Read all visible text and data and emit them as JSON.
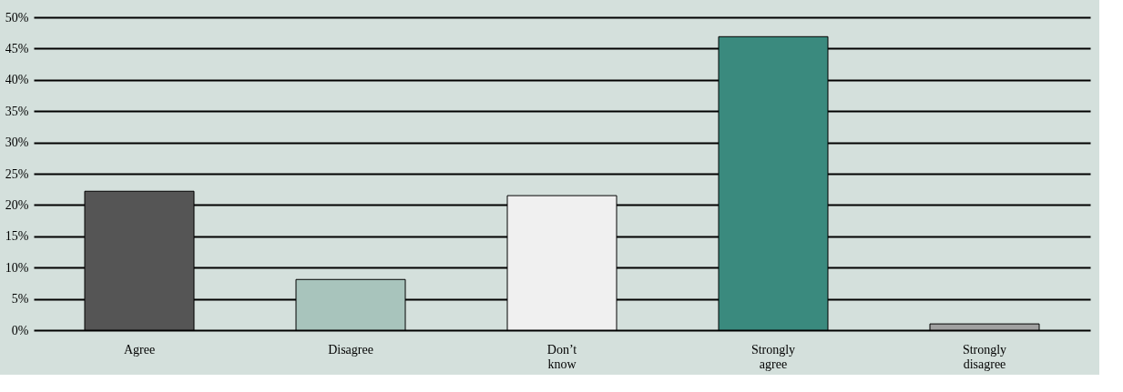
{
  "chart_data": {
    "type": "bar",
    "categories": [
      "Agree",
      "Disagree",
      "Don’t know",
      "Strongly agree",
      "Strongly disagree"
    ],
    "values": [
      22.2,
      8.1,
      21.5,
      46.9,
      1.0
    ],
    "colors": [
      "#555555",
      "#a8c4bc",
      "#f0f0f0",
      "#3a8a7e",
      "#a0a0a0"
    ],
    "ylim": [
      0,
      50
    ],
    "yticks": [
      {
        "value": 0,
        "label": "0%"
      },
      {
        "value": 5,
        "label": "5%"
      },
      {
        "value": 10,
        "label": "10%"
      },
      {
        "value": 15,
        "label": "15%"
      },
      {
        "value": 20,
        "label": "20%"
      },
      {
        "value": 25,
        "label": "25%"
      },
      {
        "value": 30,
        "label": "30%"
      },
      {
        "value": 35,
        "label": "35%"
      },
      {
        "value": 40,
        "label": "40%"
      },
      {
        "value": 45,
        "label": "45%"
      },
      {
        "value": 50,
        "label": "50%"
      }
    ],
    "grid": "y",
    "legend": false
  }
}
